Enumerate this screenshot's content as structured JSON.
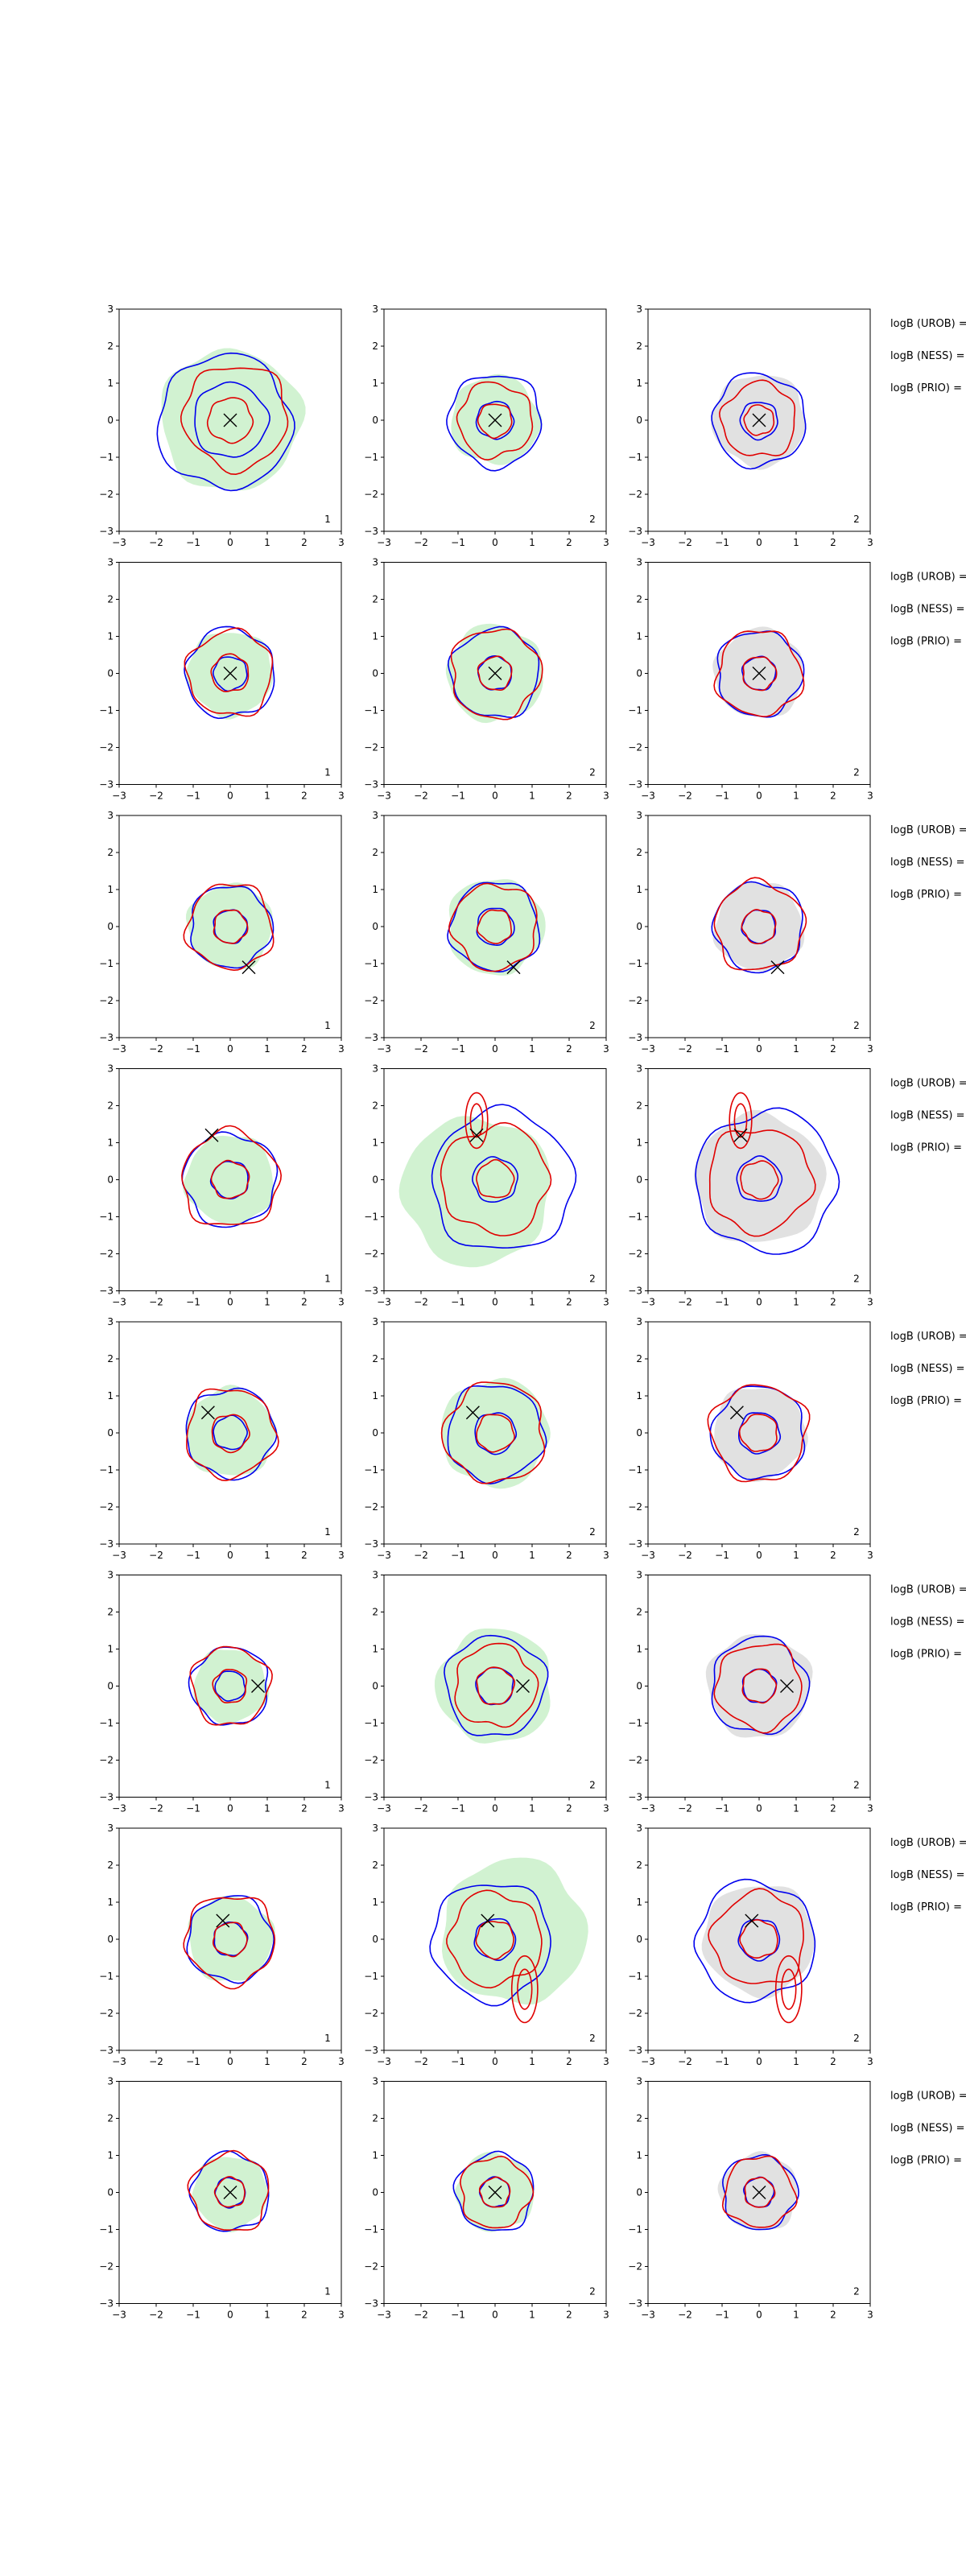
{
  "figure": {
    "axis": {
      "xlim": [
        -3,
        3
      ],
      "ylim": [
        -3,
        3
      ],
      "ticks": [
        -3,
        -2,
        -1,
        0,
        1,
        2,
        3
      ]
    },
    "colors": {
      "blue": "#0000ee",
      "red": "#e00000",
      "green_fill": "#c9f0c9",
      "grey_fill": "#dcdcdc",
      "marker": "#000000"
    },
    "side_labels": [
      "logB (UROB) =",
      "logB (NESS) =",
      "logB (PRIO) ="
    ]
  },
  "chart_data": [
    {
      "type": "contour",
      "row": 1,
      "truth_marker": [
        0.0,
        0.0
      ],
      "panels": [
        {
          "corner_label": "1",
          "fill": "green",
          "fill_radius": 1.9,
          "blue": [
            {
              "r": 1.0
            },
            {
              "r": 1.8,
              "cx": -0.15,
              "cy": -0.05
            }
          ],
          "red": [
            {
              "r": 0.6
            },
            {
              "r": 1.4,
              "cx": 0.15,
              "cy": 0.1
            }
          ]
        },
        {
          "corner_label": "2",
          "fill": "green",
          "fill_radius": 1.2,
          "blue": [
            {
              "r": 0.5
            },
            {
              "r": 1.25
            }
          ],
          "red": [
            {
              "r": 0.45
            },
            {
              "r": 1.0
            }
          ]
        },
        {
          "corner_label": "2",
          "fill": "grey",
          "fill_radius": 1.25,
          "blue": [
            {
              "r": 0.5
            },
            {
              "r": 1.25
            }
          ],
          "red": [
            {
              "r": 0.4
            },
            {
              "r": 1.0
            }
          ]
        }
      ]
    },
    {
      "type": "contour",
      "row": 2,
      "truth_marker": [
        0.0,
        0.0
      ],
      "panels": [
        {
          "corner_label": "1",
          "fill": "green",
          "fill_radius": 1.15,
          "blue": [
            {
              "r": 0.45
            },
            {
              "r": 1.2
            }
          ],
          "red": [
            {
              "r": 0.5
            },
            {
              "r": 1.15
            }
          ]
        },
        {
          "corner_label": "2",
          "fill": "green",
          "fill_radius": 1.3,
          "blue": [
            {
              "r": 0.45
            },
            {
              "r": 1.2
            }
          ],
          "red": [
            {
              "r": 0.45
            },
            {
              "r": 1.2
            }
          ]
        },
        {
          "corner_label": "2",
          "fill": "grey",
          "fill_radius": 1.2,
          "blue": [
            {
              "r": 0.45
            },
            {
              "r": 1.15
            }
          ],
          "red": [
            {
              "r": 0.45
            },
            {
              "r": 1.15
            }
          ]
        }
      ]
    },
    {
      "type": "contour",
      "row": 3,
      "truth_marker": [
        0.5,
        -1.1
      ],
      "panels": [
        {
          "corner_label": "1",
          "fill": "green",
          "fill_radius": 1.15,
          "blue": [
            {
              "r": 0.45
            },
            {
              "r": 1.1
            }
          ],
          "red": [
            {
              "r": 0.45
            },
            {
              "r": 1.15
            }
          ]
        },
        {
          "corner_label": "2",
          "fill": "green",
          "fill_radius": 1.3,
          "blue": [
            {
              "r": 0.5
            },
            {
              "r": 1.2
            }
          ],
          "red": [
            {
              "r": 0.45
            },
            {
              "r": 1.15
            }
          ]
        },
        {
          "corner_label": "2",
          "fill": "grey",
          "fill_radius": 1.2,
          "blue": [
            {
              "r": 0.45
            },
            {
              "r": 1.2
            }
          ],
          "red": [
            {
              "r": 0.45
            },
            {
              "r": 1.2
            }
          ]
        }
      ]
    },
    {
      "type": "contour",
      "row": 4,
      "truth_marker": [
        -0.5,
        1.2
      ],
      "panels": [
        {
          "corner_label": "1",
          "fill": "green",
          "fill_radius": 1.2,
          "blue": [
            {
              "r": 0.5
            },
            {
              "r": 1.25
            }
          ],
          "red": [
            {
              "r": 0.5
            },
            {
              "r": 1.3
            }
          ]
        },
        {
          "corner_label": "2",
          "fill": "green",
          "fill_radius": 2.0,
          "fill_cx": -0.5,
          "fill_cy": -0.3,
          "blue": [
            {
              "r": 0.6
            },
            {
              "r": 1.9,
              "cx": 0.2,
              "cy": -0.05
            }
          ],
          "red": [
            {
              "r": 0.5
            },
            {
              "r": 1.45
            }
          ],
          "red_lobe": {
            "cx": -0.5,
            "cy": 1.6,
            "rx": 0.3,
            "ry": 0.75
          }
        },
        {
          "corner_label": "2",
          "fill": "grey",
          "fill_radius": 1.75,
          "blue": [
            {
              "r": 0.6
            },
            {
              "r": 1.9,
              "cx": 0.2,
              "cy": -0.05
            }
          ],
          "red": [
            {
              "r": 0.5
            },
            {
              "r": 1.4
            }
          ],
          "red_lobe": {
            "cx": -0.5,
            "cy": 1.6,
            "rx": 0.3,
            "ry": 0.75
          }
        }
      ]
    },
    {
      "type": "contour",
      "row": 5,
      "truth_marker": [
        -0.6,
        0.55
      ],
      "panels": [
        {
          "corner_label": "1",
          "fill": "green",
          "fill_radius": 1.2,
          "blue": [
            {
              "r": 0.45
            },
            {
              "r": 1.2
            }
          ],
          "red": [
            {
              "r": 0.5
            },
            {
              "r": 1.2
            }
          ]
        },
        {
          "corner_label": "2",
          "fill": "green",
          "fill_radius": 1.45,
          "blue": [
            {
              "r": 0.55
            },
            {
              "r": 1.3
            }
          ],
          "red": [
            {
              "r": 0.5
            },
            {
              "r": 1.35
            }
          ]
        },
        {
          "corner_label": "2",
          "fill": "grey",
          "fill_radius": 1.25,
          "blue": [
            {
              "r": 0.55
            },
            {
              "r": 1.25
            }
          ],
          "red": [
            {
              "r": 0.5
            },
            {
              "r": 1.3
            }
          ]
        }
      ]
    },
    {
      "type": "contour",
      "row": 6,
      "truth_marker": [
        0.75,
        0.0
      ],
      "panels": [
        {
          "corner_label": "1",
          "fill": "green",
          "fill_radius": 1.0,
          "blue": [
            {
              "r": 0.4
            },
            {
              "r": 1.05
            }
          ],
          "red": [
            {
              "r": 0.45
            },
            {
              "r": 1.05
            }
          ]
        },
        {
          "corner_label": "2",
          "fill": "green",
          "fill_radius": 1.55,
          "blue": [
            {
              "r": 0.5
            },
            {
              "r": 1.35
            }
          ],
          "red": [
            {
              "r": 0.5
            },
            {
              "r": 1.1
            }
          ]
        },
        {
          "corner_label": "2",
          "fill": "grey",
          "fill_radius": 1.4,
          "blue": [
            {
              "r": 0.45
            },
            {
              "r": 1.3
            }
          ],
          "red": [
            {
              "r": 0.45
            },
            {
              "r": 1.15
            }
          ]
        }
      ]
    },
    {
      "type": "contour",
      "row": 7,
      "truth_marker": [
        -0.2,
        0.5
      ],
      "panels": [
        {
          "corner_label": "1",
          "fill": "green",
          "fill_radius": 1.15,
          "blue": [
            {
              "r": 0.45
            },
            {
              "r": 1.15
            }
          ],
          "red": [
            {
              "r": 0.45
            },
            {
              "r": 1.2
            }
          ]
        },
        {
          "corner_label": "2",
          "fill": "green",
          "fill_radius": 1.95,
          "fill_cx": 0.5,
          "fill_cy": 0.2,
          "blue": [
            {
              "r": 0.55
            },
            {
              "r": 1.6,
              "cx": -0.1,
              "cy": -0.05
            }
          ],
          "red": [
            {
              "r": 0.5
            },
            {
              "r": 1.25
            }
          ],
          "red_lobe": {
            "cx": 0.8,
            "cy": -1.35,
            "rx": 0.35,
            "ry": 0.9
          }
        },
        {
          "corner_label": "2",
          "fill": "grey",
          "fill_radius": 1.5,
          "blue": [
            {
              "r": 0.55
            },
            {
              "r": 1.6,
              "cx": -0.1,
              "cy": -0.05
            }
          ],
          "red": [
            {
              "r": 0.5
            },
            {
              "r": 1.25
            }
          ],
          "red_lobe": {
            "cx": 0.8,
            "cy": -1.35,
            "rx": 0.35,
            "ry": 0.9
          }
        }
      ]
    },
    {
      "type": "contour",
      "row": 8,
      "truth_marker": [
        0.0,
        0.0
      ],
      "panels": [
        {
          "corner_label": "1",
          "fill": "green",
          "fill_radius": 1.0,
          "blue": [
            {
              "r": 0.4
            },
            {
              "r": 1.05
            }
          ],
          "red": [
            {
              "r": 0.4
            },
            {
              "r": 1.05
            }
          ]
        },
        {
          "corner_label": "2",
          "fill": "green",
          "fill_radius": 1.05,
          "blue": [
            {
              "r": 0.4
            },
            {
              "r": 1.05
            }
          ],
          "red": [
            {
              "r": 0.4
            },
            {
              "r": 0.95
            }
          ]
        },
        {
          "corner_label": "2",
          "fill": "grey",
          "fill_radius": 1.05,
          "blue": [
            {
              "r": 0.4
            },
            {
              "r": 1.0
            }
          ],
          "red": [
            {
              "r": 0.4
            },
            {
              "r": 0.95
            }
          ]
        }
      ]
    }
  ]
}
